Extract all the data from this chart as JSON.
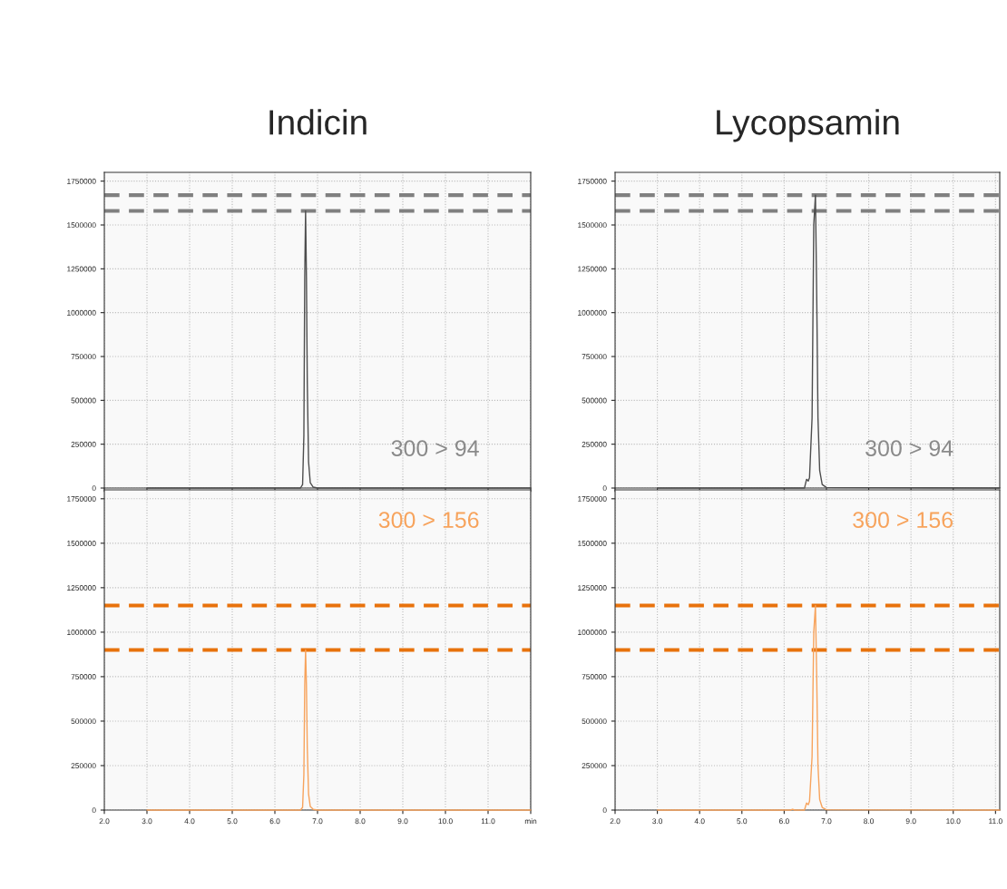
{
  "chart_data": [
    {
      "type": "line",
      "title": "Indicin",
      "tick_labels": "y",
      "grid": true,
      "xlim": [
        2,
        12
      ],
      "ylim": [
        0,
        1800000
      ],
      "yticks": [
        0,
        250000,
        500000,
        750000,
        1000000,
        1250000,
        1500000,
        1750000
      ],
      "xticks": [
        {
          "value": 2,
          "label": null
        },
        {
          "value": 3,
          "label": null
        },
        {
          "value": 4,
          "label": null
        },
        {
          "value": 5,
          "label": null
        },
        {
          "value": 6,
          "label": null
        },
        {
          "value": 7,
          "label": null
        },
        {
          "value": 8,
          "label": null
        },
        {
          "value": 9,
          "label": null
        },
        {
          "value": 10,
          "label": null
        },
        {
          "value": 11,
          "label": null
        },
        {
          "value": 12,
          "label": null
        }
      ],
      "series": [
        {
          "color": "#4d4d4d",
          "x": [
            3.0,
            6.6,
            6.65,
            6.68,
            6.7,
            6.72,
            6.74,
            6.76,
            6.79,
            6.83,
            6.9,
            7.0,
            12.0
          ],
          "values": [
            0,
            0,
            20000,
            300000,
            1200000,
            1580000,
            1200000,
            600000,
            150000,
            30000,
            5000,
            0,
            0
          ]
        }
      ],
      "ref_lines": [
        {
          "axis": "y",
          "value": 1670000,
          "color": "#808080",
          "line_style": "dashed"
        },
        {
          "axis": "y",
          "value": 1580000,
          "color": "#808080",
          "line_style": "dashed"
        }
      ],
      "annotations": [
        "300 > 94"
      ]
    },
    {
      "type": "line",
      "tick_labels": true,
      "grid": true,
      "xlim": [
        2,
        12
      ],
      "ylim": [
        0,
        1800000
      ],
      "yticks": [
        0,
        250000,
        500000,
        750000,
        1000000,
        1250000,
        1500000,
        1750000
      ],
      "xticks": [
        {
          "value": 2,
          "label": "2.0"
        },
        {
          "value": 3,
          "label": "3.0"
        },
        {
          "value": 4,
          "label": "4.0"
        },
        {
          "value": 5,
          "label": "5.0"
        },
        {
          "value": 6,
          "label": "6.0"
        },
        {
          "value": 7,
          "label": "7.0"
        },
        {
          "value": 8,
          "label": "8.0"
        },
        {
          "value": 9,
          "label": "9.0"
        },
        {
          "value": 10,
          "label": "10.0"
        },
        {
          "value": 11,
          "label": "11.0"
        },
        {
          "value": 12,
          "label": "min"
        }
      ],
      "series": [
        {
          "color": "#f7a35c",
          "x": [
            3.0,
            6.6,
            6.65,
            6.68,
            6.7,
            6.72,
            6.74,
            6.76,
            6.79,
            6.83,
            6.9,
            7.0,
            12.0
          ],
          "values": [
            0,
            0,
            15000,
            200000,
            700000,
            900000,
            700000,
            350000,
            90000,
            20000,
            4000,
            0,
            0
          ]
        }
      ],
      "ref_lines": [
        {
          "axis": "y",
          "value": 1150000,
          "color": "#e8720c",
          "line_style": "dashed"
        },
        {
          "axis": "y",
          "value": 900000,
          "color": "#e8720c",
          "line_style": "dashed"
        }
      ],
      "annotations": [
        "300 > 156"
      ]
    },
    {
      "type": "line",
      "title": "Lycopsamin",
      "tick_labels": "y",
      "grid": true,
      "xlim": [
        2,
        11.1
      ],
      "ylim": [
        0,
        1800000
      ],
      "yticks": [
        0,
        250000,
        500000,
        750000,
        1000000,
        1250000,
        1500000,
        1750000
      ],
      "xticks": [
        {
          "value": 2,
          "label": null
        },
        {
          "value": 3,
          "label": null
        },
        {
          "value": 4,
          "label": null
        },
        {
          "value": 5,
          "label": null
        },
        {
          "value": 6,
          "label": null
        },
        {
          "value": 7,
          "label": null
        },
        {
          "value": 8,
          "label": null
        },
        {
          "value": 9,
          "label": null
        },
        {
          "value": 10,
          "label": null
        },
        {
          "value": 11,
          "label": null
        }
      ],
      "series": [
        {
          "color": "#4d4d4d",
          "x": [
            3.0,
            6.48,
            6.53,
            6.57,
            6.6,
            6.66,
            6.7,
            6.74,
            6.77,
            6.8,
            6.84,
            6.9,
            7.0,
            11.1
          ],
          "values": [
            0,
            0,
            50000,
            40000,
            60000,
            400000,
            1500000,
            1670000,
            1100000,
            400000,
            100000,
            20000,
            3000,
            0
          ]
        }
      ],
      "ref_lines": [
        {
          "axis": "y",
          "value": 1670000,
          "color": "#808080",
          "line_style": "dashed"
        },
        {
          "axis": "y",
          "value": 1580000,
          "color": "#808080",
          "line_style": "dashed"
        }
      ],
      "annotations": [
        "300 > 94"
      ]
    },
    {
      "type": "line",
      "tick_labels": true,
      "grid": true,
      "xlim": [
        2,
        11.1
      ],
      "ylim": [
        0,
        1800000
      ],
      "yticks": [
        0,
        250000,
        500000,
        750000,
        1000000,
        1250000,
        1500000,
        1750000
      ],
      "xticks": [
        {
          "value": 2,
          "label": "2.0"
        },
        {
          "value": 3,
          "label": "3.0"
        },
        {
          "value": 4,
          "label": "4.0"
        },
        {
          "value": 5,
          "label": "5.0"
        },
        {
          "value": 6,
          "label": "6.0"
        },
        {
          "value": 7,
          "label": "7.0"
        },
        {
          "value": 8,
          "label": "8.0"
        },
        {
          "value": 9,
          "label": "9.0"
        },
        {
          "value": 10,
          "label": "10.0"
        },
        {
          "value": 11,
          "label": "11.0"
        }
      ],
      "series": [
        {
          "color": "#f7a35c",
          "x": [
            3.0,
            6.15,
            6.2,
            6.25,
            6.48,
            6.53,
            6.57,
            6.6,
            6.66,
            6.7,
            6.74,
            6.77,
            6.8,
            6.84,
            6.9,
            7.0,
            11.1
          ],
          "values": [
            0,
            0,
            5000,
            0,
            0,
            40000,
            30000,
            50000,
            300000,
            1000000,
            1150000,
            750000,
            250000,
            60000,
            15000,
            2000,
            0
          ]
        }
      ],
      "ref_lines": [
        {
          "axis": "y",
          "value": 1150000,
          "color": "#e8720c",
          "line_style": "dashed"
        },
        {
          "axis": "y",
          "value": 900000,
          "color": "#e8720c",
          "line_style": "dashed"
        }
      ],
      "annotations": [
        "300 > 156"
      ]
    }
  ]
}
